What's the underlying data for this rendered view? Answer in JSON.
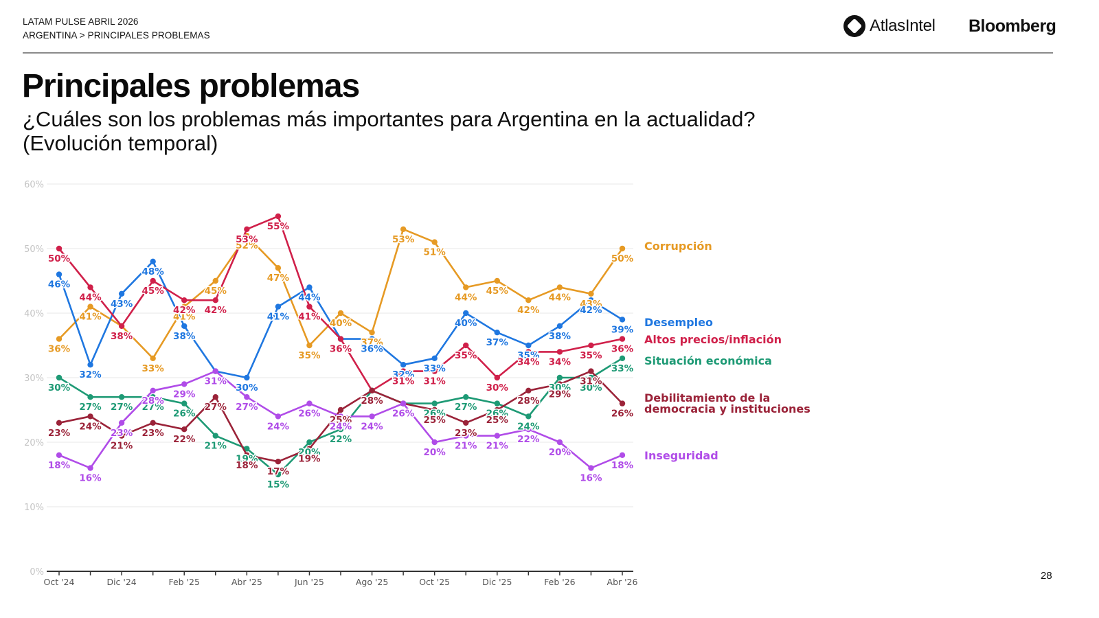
{
  "header": {
    "report": "LATAM PULSE ABRIL 2026",
    "breadcrumb": "ARGENTINA > PRINCIPALES PROBLEMAS",
    "logo_atlas": "AtlasIntel",
    "logo_bloomberg": "Bloomberg"
  },
  "title": "Principales problemas",
  "subtitle_line1": "¿Cuáles son los problemas más importantes para Argentina en la actualidad?",
  "subtitle_line2": "(Evolución temporal)",
  "page_number": "28",
  "chart_data": {
    "type": "line",
    "title": "",
    "xlabel": "",
    "ylabel": "",
    "ylim": [
      0,
      60
    ],
    "yticks": [
      "0%",
      "10%",
      "20%",
      "30%",
      "40%",
      "50%",
      "60%"
    ],
    "grid": true,
    "legend_placement": "right (end of lines)",
    "x": [
      "Oct '24",
      "Nov '24",
      "Dic '24",
      "Ene '25",
      "Feb '25",
      "Mar '25",
      "Abr '25",
      "May '25",
      "Jun '25",
      "Jul '25",
      "Ago '25",
      "Sep '25",
      "Oct '25",
      "Nov '25",
      "Dic '25",
      "Ene '26",
      "Feb '26",
      "Mar '26",
      "Abr '26"
    ],
    "xtick_labels": [
      "Oct '24",
      "",
      "Dic '24",
      "",
      "Feb '25",
      "",
      "Abr '25",
      "",
      "Jun '25",
      "",
      "Ago '25",
      "",
      "Oct '25",
      "",
      "Dic '25",
      "",
      "Feb '26",
      "",
      "Abr '26"
    ],
    "series": [
      {
        "name": "Corrupción",
        "color": "#E69A24",
        "values": [
          36,
          41,
          38,
          33,
          41,
          45,
          52,
          47,
          35,
          40,
          37,
          53,
          51,
          44,
          45,
          42,
          44,
          43,
          50
        ]
      },
      {
        "name": "Desempleo",
        "color": "#1F77E0",
        "values": [
          46,
          32,
          43,
          48,
          38,
          31,
          30,
          41,
          44,
          36,
          36,
          32,
          33,
          40,
          37,
          35,
          38,
          42,
          39
        ]
      },
      {
        "name": "Altos precios/inflación",
        "color": "#D0204A",
        "values": [
          50,
          44,
          38,
          45,
          42,
          42,
          53,
          55,
          41,
          36,
          28,
          31,
          31,
          35,
          30,
          34,
          34,
          35,
          36
        ]
      },
      {
        "name": "Situación económica",
        "color": "#1E9A75",
        "values": [
          30,
          27,
          27,
          27,
          26,
          21,
          19,
          15,
          20,
          22,
          28,
          26,
          26,
          27,
          26,
          24,
          30,
          30,
          33
        ]
      },
      {
        "name": "Debilitamiento de la democracia y instituciones",
        "legend_lines": [
          "Debilitamiento de la",
          "democracia y instituciones"
        ],
        "color": "#9B2339",
        "values": [
          23,
          24,
          21,
          23,
          22,
          27,
          18,
          17,
          19,
          25,
          28,
          26,
          25,
          23,
          25,
          28,
          29,
          31,
          26
        ]
      },
      {
        "name": "Inseguridad",
        "color": "#B04CE8",
        "values": [
          18,
          16,
          23,
          28,
          29,
          31,
          27,
          24,
          26,
          24,
          24,
          26,
          20,
          21,
          21,
          22,
          20,
          16,
          18
        ]
      }
    ]
  }
}
